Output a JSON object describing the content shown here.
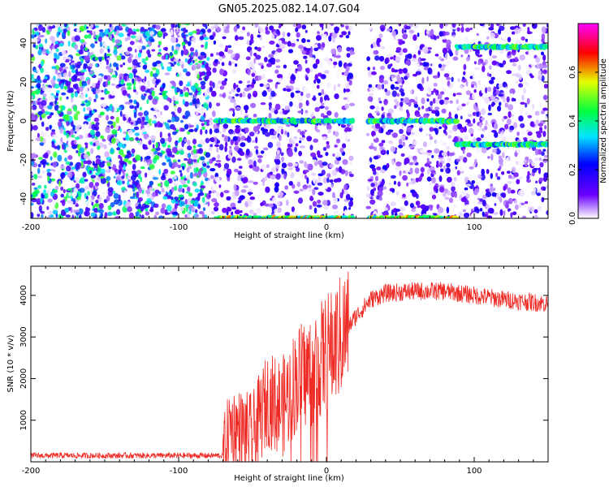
{
  "title": "GN05.2025.082.14.07.G04",
  "chart_data": [
    {
      "type": "heatmap",
      "xlabel": "Height of straight line (km)",
      "ylabel": "Frequency (Hz)",
      "xlim": [
        -200,
        150
      ],
      "ylim": [
        -50,
        50
      ],
      "xticks": [
        -200,
        -100,
        0,
        100
      ],
      "yticks": [
        -40,
        -20,
        0,
        20,
        40
      ],
      "colorbar": {
        "label": "Normalized spectral amplitude",
        "range": [
          0,
          0.8
        ],
        "ticks": [
          0.0,
          0.2,
          0.4,
          0.6
        ],
        "colors": [
          "#ffffff",
          "#6a00ff",
          "#0000ff",
          "#00e5ff",
          "#00ff40",
          "#e5ff00",
          "#ff0000",
          "#ff00ff"
        ]
      },
      "features": [
        {
          "kind": "noise",
          "x_range": [
            -200,
            -80
          ],
          "amplitude": 0.35
        },
        {
          "kind": "noise",
          "x_range": [
            -80,
            150
          ],
          "amplitude": 0.15
        },
        {
          "kind": "gap",
          "x_range": [
            18,
            28
          ]
        },
        {
          "kind": "line",
          "freq": 0,
          "x_range": [
            -75,
            88
          ],
          "amplitude": 0.45
        },
        {
          "kind": "line",
          "freq": -50,
          "x_range": [
            -75,
            88
          ],
          "amplitude": 0.55
        },
        {
          "kind": "line",
          "freq": 38,
          "x_range": [
            88,
            150
          ],
          "amplitude": 0.45
        },
        {
          "kind": "line",
          "freq": -12,
          "x_range": [
            88,
            150
          ],
          "amplitude": 0.45
        }
      ]
    },
    {
      "type": "line",
      "xlabel": "Height of straight line (km)",
      "ylabel": "SNR (10 * v/v)",
      "xlim": [
        -200,
        150
      ],
      "ylim": [
        0,
        4700
      ],
      "xticks": [
        -200,
        -100,
        0,
        100
      ],
      "yticks": [
        1000,
        2000,
        3000,
        4000
      ],
      "color": "#ee2a24",
      "trend": [
        {
          "x": -200,
          "y": 150
        },
        {
          "x": -70,
          "y": 150
        },
        {
          "x": -65,
          "y": 900
        },
        {
          "x": -50,
          "y": 600
        },
        {
          "x": -40,
          "y": 1500
        },
        {
          "x": -30,
          "y": 1300
        },
        {
          "x": -20,
          "y": 2000
        },
        {
          "x": -10,
          "y": 2200
        },
        {
          "x": 0,
          "y": 2600
        },
        {
          "x": 10,
          "y": 3000
        },
        {
          "x": 20,
          "y": 3500
        },
        {
          "x": 30,
          "y": 3900
        },
        {
          "x": 40,
          "y": 4050
        },
        {
          "x": 60,
          "y": 4100
        },
        {
          "x": 80,
          "y": 4100
        },
        {
          "x": 100,
          "y": 4000
        },
        {
          "x": 120,
          "y": 3900
        },
        {
          "x": 150,
          "y": 3800
        }
      ]
    }
  ]
}
